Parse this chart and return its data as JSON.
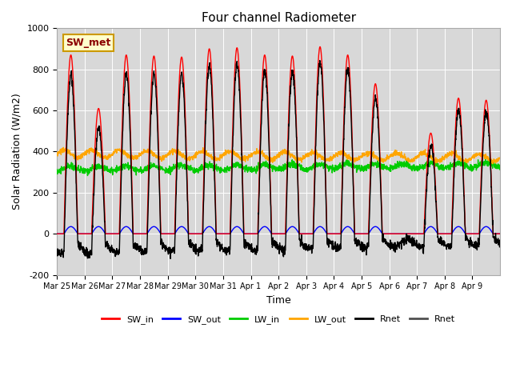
{
  "title": "Four channel Radiometer",
  "xlabel": "Time",
  "ylabel": "Solar Radiation (W/m2)",
  "ylim": [
    -200,
    1000
  ],
  "plot_bg_color": "#d8d8d8",
  "annotation_text": "SW_met",
  "annotation_bg": "#ffffcc",
  "annotation_border": "#cc9900",
  "annotation_text_color": "#8b0000",
  "day_labels": [
    "Mar 25",
    "Mar 26",
    "Mar 27",
    "Mar 28",
    "Mar 29",
    "Mar 30",
    "Mar 31",
    "Apr 1",
    "Apr 2",
    "Apr 3",
    "Apr 4",
    "Apr 5",
    "Apr 6",
    "Apr 7",
    "Apr 8",
    "Apr 9"
  ],
  "day_peaks": [
    870,
    610,
    870,
    865,
    860,
    900,
    905,
    870,
    865,
    910,
    870,
    730,
    0,
    490,
    660,
    650
  ],
  "sw_out_scale": 35,
  "series_colors": {
    "SW_in": "#ff0000",
    "SW_out": "#0000ff",
    "LW_in": "#00cc00",
    "LW_out": "#ffa500",
    "Rnet": "#000000",
    "Rnet2": "#505050"
  },
  "legend_entries": [
    "SW_in",
    "SW_out",
    "LW_in",
    "LW_out",
    "Rnet",
    "Rnet"
  ],
  "legend_colors": [
    "#ff0000",
    "#0000ff",
    "#00cc00",
    "#ffa500",
    "#000000",
    "#505050"
  ],
  "yticks": [
    -200,
    0,
    200,
    400,
    600,
    800,
    1000
  ],
  "ytick_labels": [
    "-200",
    "0",
    "200",
    "400",
    "600",
    "800",
    "1000"
  ]
}
